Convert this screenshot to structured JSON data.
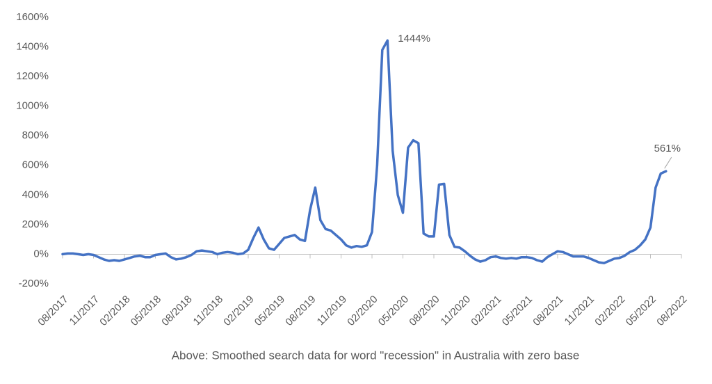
{
  "chart_data": {
    "type": "line",
    "caption": "Above: Smoothed search data for word \"recession\" in Australia with zero base",
    "categories": [
      "08/2017",
      null,
      null,
      null,
      null,
      null,
      "11/2017",
      null,
      null,
      null,
      null,
      null,
      "02/2018",
      null,
      null,
      null,
      null,
      null,
      "05/2018",
      null,
      null,
      null,
      null,
      null,
      "08/2018",
      null,
      null,
      null,
      null,
      null,
      "11/2018",
      null,
      null,
      null,
      null,
      null,
      "02/2019",
      null,
      null,
      null,
      null,
      null,
      "05/2019",
      null,
      null,
      null,
      null,
      null,
      "08/2019",
      null,
      null,
      null,
      null,
      null,
      "11/2019",
      null,
      null,
      null,
      null,
      null,
      "02/2020",
      null,
      null,
      null,
      null,
      null,
      "05/2020",
      null,
      null,
      null,
      null,
      null,
      "08/2020",
      null,
      null,
      null,
      null,
      null,
      "11/2020",
      null,
      null,
      null,
      null,
      null,
      "02/2021",
      null,
      null,
      null,
      null,
      null,
      "05/2021",
      null,
      null,
      null,
      null,
      null,
      "08/2021",
      null,
      null,
      null,
      null,
      null,
      "11/2021",
      null,
      null,
      null,
      null,
      null,
      "02/2022",
      null,
      null,
      null,
      null,
      null,
      "05/2022",
      null,
      null,
      null,
      null,
      null,
      "08/2022"
    ],
    "values": [
      0,
      5,
      5,
      0,
      -5,
      0,
      -5,
      -20,
      -35,
      -45,
      -40,
      -45,
      -35,
      -25,
      -15,
      -10,
      -20,
      -20,
      -5,
      0,
      5,
      -20,
      -35,
      -30,
      -20,
      -5,
      20,
      25,
      20,
      15,
      0,
      10,
      15,
      10,
      0,
      5,
      30,
      110,
      180,
      100,
      40,
      30,
      70,
      110,
      120,
      130,
      100,
      90,
      300,
      450,
      230,
      170,
      160,
      130,
      100,
      60,
      45,
      55,
      50,
      60,
      150,
      600,
      1380,
      1444,
      700,
      400,
      280,
      720,
      770,
      750,
      140,
      120,
      120,
      470,
      475,
      130,
      50,
      45,
      20,
      -10,
      -35,
      -50,
      -40,
      -20,
      -15,
      -25,
      -30,
      -25,
      -30,
      -20,
      -20,
      -25,
      -40,
      -50,
      -20,
      0,
      20,
      15,
      0,
      -15,
      -15,
      -15,
      -25,
      -40,
      -55,
      -60,
      -45,
      -30,
      -25,
      -10,
      15,
      30,
      60,
      100,
      180,
      450,
      545,
      561,
      null,
      null,
      null
    ],
    "value_labels": [
      null,
      null,
      null,
      null,
      null,
      null,
      null,
      null,
      null,
      null,
      null,
      null,
      null,
      null,
      null,
      null,
      null,
      null,
      null,
      null,
      null,
      null,
      null,
      null,
      null,
      null,
      null,
      null,
      null,
      null,
      null,
      null,
      null,
      null,
      null,
      null,
      null,
      null,
      null,
      null,
      null,
      null,
      null,
      null,
      null,
      null,
      null,
      null,
      null,
      null,
      null,
      null,
      null,
      null,
      null,
      null,
      null,
      null,
      null,
      null,
      null,
      null,
      null,
      "1444%",
      null,
      null,
      null,
      null,
      null,
      null,
      null,
      null,
      null,
      null,
      null,
      null,
      null,
      null,
      null,
      null,
      null,
      null,
      null,
      null,
      null,
      null,
      null,
      null,
      null,
      null,
      null,
      null,
      null,
      null,
      null,
      null,
      null,
      null,
      null,
      null,
      null,
      null,
      null,
      null,
      null,
      null,
      null,
      null,
      null,
      null,
      null,
      null,
      null,
      null,
      null,
      null,
      null,
      "561%",
      null,
      null,
      null
    ],
    "color": "#4472c4",
    "ylim": [
      -200,
      1600
    ],
    "yticks": [
      {
        "value": -200,
        "label": "-200%"
      },
      {
        "value": 0,
        "label": "0%"
      },
      {
        "value": 200,
        "label": "200%"
      },
      {
        "value": 400,
        "label": "400%"
      },
      {
        "value": 600,
        "label": "600%"
      },
      {
        "value": 800,
        "label": "800%"
      },
      {
        "value": 1000,
        "label": "1000%"
      },
      {
        "value": 1200,
        "label": "1200%"
      },
      {
        "value": 1400,
        "label": "1400%"
      },
      {
        "value": 1600,
        "label": "1600%"
      }
    ],
    "grid": false
  }
}
